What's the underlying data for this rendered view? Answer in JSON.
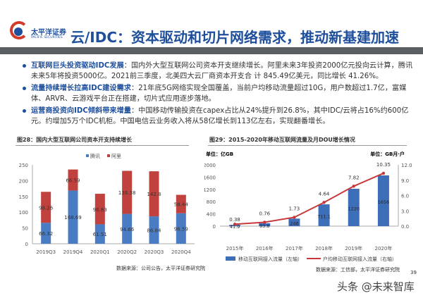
{
  "header": {
    "logo_cn": "太平洋证券",
    "logo_en": "PACIFIC SECURITIES",
    "title": "云/IDC：资本驱动和切片网络需求，推动新基建加速"
  },
  "bullets": [
    {
      "head": "互联网巨头投资驱动IDC发展",
      "body": "：国内外大型互联网公司资本开支继续增长。阿里未来3年投资2000亿元投向云计算，腾讯未来5年将投资5000亿。2021前三季度，北美四大云厂商资本开支合 计 845.49亿美元，同比增长 41.26%。"
    },
    {
      "head": "流量持续增长拉高IDC建设需求",
      "body": "：21年底5G网络实现全国覆盖，当前户均移动流量超过10G，用户数超过1.7亿，富媒体、ARVR、云游戏平台正在搭建，切片式应用逐步落地。"
    },
    {
      "head": "运营商投资向IDC倾斜带来增量",
      "body": "：中国移动传输投资在capex占比从24%提升到26.8%，其中IDC/云将占16%约600亿元。约增加5万个IDC机柜。中国电信云业务收入将从58亿增长到113亿左右，实现翻番增长。"
    }
  ],
  "chart_data": [
    {
      "type": "bar",
      "stacked": true,
      "title": "图28：国内大型互联网公司资本开支持续增长",
      "categories": [
        "2019Q3",
        "2019Q4",
        "2020Q1",
        "2020Q2",
        "2020Q3",
        "2020Q4"
      ],
      "series": [
        {
          "name": "腾讯",
          "color": "#4a7cc4",
          "values": [
            66.32,
            168.69,
            61.51,
            94.66,
            86.84,
            96.59
          ]
        },
        {
          "name": "阿里",
          "color": "#c0413d",
          "values": [
            98.26,
            66.59,
            96.83,
            136.38,
            142.8,
            58.44
          ]
        }
      ],
      "ylim": [
        0,
        250
      ],
      "yticks": [
        0,
        50,
        100,
        150,
        200,
        250
      ],
      "legend": "top",
      "source": "数据来源：公司公告，太平洋证券研究院"
    },
    {
      "type": "bar+line",
      "title": "图29：2015-2020年移动互联网流量及月DOU增长情况",
      "categories": [
        "2015年",
        "2016年",
        "2017年",
        "2018年",
        "2019年",
        "2020年"
      ],
      "left_unit": "单位：亿GB",
      "right_unit": "单位：GB月·户",
      "bar_series": {
        "name": "移动互联网接入流量（左轴）",
        "color": "#3d6fb8",
        "values": [
          41.9,
          93.8,
          246,
          711.1,
          1220,
          1656
        ]
      },
      "line_series": {
        "name": "户均移动互联网接入流量（右轴）",
        "color": "#c8383a",
        "values": [
          0.38,
          0.76,
          1.73,
          4.64,
          7.82,
          10.35
        ]
      },
      "ylim_left": [
        0,
        2000
      ],
      "yticks_left": [
        0,
        400,
        800,
        1200,
        1600,
        2000
      ],
      "ylim_right": [
        0,
        12
      ],
      "yticks_right": [
        "0.0",
        "3.0",
        "6.0",
        "9.0",
        "12.0"
      ],
      "legend": "bottom",
      "source": "数据来源：工信部，太平洋证券研究院"
    }
  ],
  "page_number": "39",
  "watermark": "头条 @未来智库"
}
